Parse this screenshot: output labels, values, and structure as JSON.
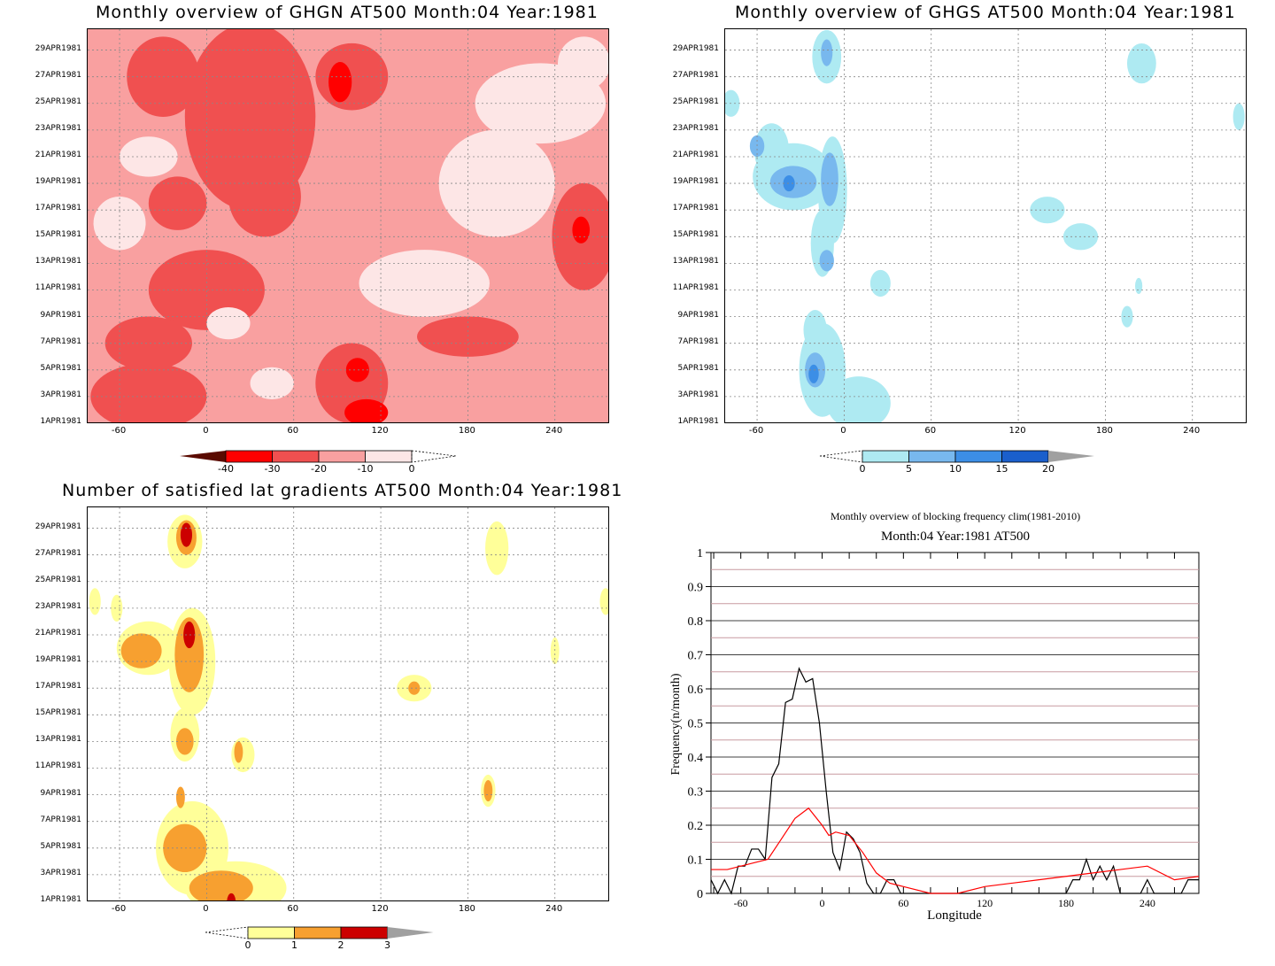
{
  "chart_data": [
    {
      "type": "heatmap",
      "title": "Monthly overview of GHGN AT500 Month:04 Year:1981",
      "x_ticks": [
        "-60",
        "0",
        "60",
        "120",
        "180",
        "240"
      ],
      "x_range": [
        -82,
        278
      ],
      "y_ticks": [
        "1APR1981",
        "3APR1981",
        "5APR1981",
        "7APR1981",
        "9APR1981",
        "11APR1981",
        "13APR1981",
        "15APR1981",
        "17APR1981",
        "19APR1981",
        "21APR1981",
        "23APR1981",
        "25APR1981",
        "27APR1981",
        "29APR1981"
      ],
      "colorbar": {
        "labels": [
          "-40",
          "-30",
          "-20",
          "-10",
          "0"
        ],
        "colors": [
          "#5a0a00",
          "#ff0000",
          "#f05050",
          "#f9a0a0",
          "#fde6e6"
        ],
        "underflow": "#5a0a00",
        "overflow": "none"
      },
      "background_color": "#f9a0a0",
      "blobs": [
        {
          "x": 30,
          "y": 24,
          "rx": 45,
          "ry": 7,
          "c": "#f05050"
        },
        {
          "x": -30,
          "y": 27,
          "rx": 25,
          "ry": 3,
          "c": "#f05050"
        },
        {
          "x": 100,
          "y": 27,
          "rx": 25,
          "ry": 2.5,
          "c": "#f05050"
        },
        {
          "x": 92,
          "y": 26.6,
          "rx": 8,
          "ry": 1.5,
          "c": "#ff0000"
        },
        {
          "x": 40,
          "y": 18,
          "rx": 25,
          "ry": 3,
          "c": "#f05050"
        },
        {
          "x": -20,
          "y": 17.5,
          "rx": 20,
          "ry": 2,
          "c": "#f05050"
        },
        {
          "x": 260,
          "y": 15,
          "rx": 22,
          "ry": 4,
          "c": "#f05050"
        },
        {
          "x": 258,
          "y": 15.5,
          "rx": 6,
          "ry": 1,
          "c": "#ff0000"
        },
        {
          "x": 0,
          "y": 11,
          "rx": 40,
          "ry": 3,
          "c": "#f05050"
        },
        {
          "x": -40,
          "y": 7,
          "rx": 30,
          "ry": 2,
          "c": "#f05050"
        },
        {
          "x": -40,
          "y": 3,
          "rx": 40,
          "ry": 2.5,
          "c": "#f05050"
        },
        {
          "x": 100,
          "y": 4,
          "rx": 25,
          "ry": 3,
          "c": "#f05050"
        },
        {
          "x": 104,
          "y": 5,
          "rx": 8,
          "ry": 0.9,
          "c": "#ff0000"
        },
        {
          "x": 110,
          "y": 1.8,
          "rx": 15,
          "ry": 1,
          "c": "#ff0000"
        },
        {
          "x": 180,
          "y": 7.5,
          "rx": 35,
          "ry": 1.5,
          "c": "#f05050"
        },
        {
          "x": 200,
          "y": 19,
          "rx": 40,
          "ry": 4,
          "c": "#fde6e6"
        },
        {
          "x": 150,
          "y": 11.5,
          "rx": 45,
          "ry": 2.5,
          "c": "#fde6e6"
        },
        {
          "x": 230,
          "y": 25,
          "rx": 45,
          "ry": 3,
          "c": "#fde6e6"
        },
        {
          "x": -60,
          "y": 16,
          "rx": 18,
          "ry": 2,
          "c": "#fde6e6"
        },
        {
          "x": 15,
          "y": 8.5,
          "rx": 15,
          "ry": 1.2,
          "c": "#fde6e6"
        },
        {
          "x": 45,
          "y": 4,
          "rx": 15,
          "ry": 1.2,
          "c": "#fde6e6"
        },
        {
          "x": -40,
          "y": 21,
          "rx": 20,
          "ry": 1.5,
          "c": "#fde6e6"
        },
        {
          "x": 260,
          "y": 28,
          "rx": 18,
          "ry": 2,
          "c": "#fde6e6"
        }
      ]
    },
    {
      "type": "heatmap",
      "title": "Monthly overview of GHGS AT500 Month:04 Year:1981",
      "x_ticks": [
        "-60",
        "0",
        "60",
        "120",
        "180",
        "240"
      ],
      "x_range": [
        -82,
        278
      ],
      "y_ticks": [
        "1APR1981",
        "3APR1981",
        "5APR1981",
        "7APR1981",
        "9APR1981",
        "11APR1981",
        "13APR1981",
        "15APR1981",
        "17APR1981",
        "19APR1981",
        "21APR1981",
        "23APR1981",
        "25APR1981",
        "27APR1981",
        "29APR1981"
      ],
      "colorbar": {
        "labels": [
          "0",
          "5",
          "10",
          "15",
          "20"
        ],
        "colors": [
          "#aeeaf2",
          "#78b8ee",
          "#3c8ee6",
          "#1a5fcc",
          "#a0a0a0"
        ],
        "underflow": "none",
        "overflow": "#a0a0a0"
      },
      "background_color": "#ffffff",
      "blobs": [
        {
          "x": -12,
          "y": 28.5,
          "rx": 10,
          "ry": 2,
          "c": "#aeeaf2"
        },
        {
          "x": -12,
          "y": 28.8,
          "rx": 4,
          "ry": 1,
          "c": "#78b8ee"
        },
        {
          "x": -78,
          "y": 25,
          "rx": 6,
          "ry": 1,
          "c": "#aeeaf2"
        },
        {
          "x": -50,
          "y": 21.5,
          "rx": 12,
          "ry": 2,
          "c": "#aeeaf2"
        },
        {
          "x": -35,
          "y": 19.5,
          "rx": 28,
          "ry": 2.5,
          "c": "#aeeaf2"
        },
        {
          "x": -8,
          "y": 18.5,
          "rx": 10,
          "ry": 4,
          "c": "#aeeaf2"
        },
        {
          "x": -15,
          "y": 14.5,
          "rx": 8,
          "ry": 2.5,
          "c": "#aeeaf2"
        },
        {
          "x": -35,
          "y": 19.1,
          "rx": 16,
          "ry": 1.2,
          "c": "#78b8ee"
        },
        {
          "x": -10,
          "y": 19.3,
          "rx": 6,
          "ry": 2,
          "c": "#78b8ee"
        },
        {
          "x": -60,
          "y": 21.8,
          "rx": 5,
          "ry": 0.8,
          "c": "#78b8ee"
        },
        {
          "x": -38,
          "y": 19,
          "rx": 4,
          "ry": 0.6,
          "c": "#3c8ee6"
        },
        {
          "x": -12,
          "y": 13.2,
          "rx": 5,
          "ry": 0.8,
          "c": "#78b8ee"
        },
        {
          "x": 25,
          "y": 11.5,
          "rx": 7,
          "ry": 1,
          "c": "#aeeaf2"
        },
        {
          "x": -15,
          "y": 5,
          "rx": 16,
          "ry": 3.5,
          "c": "#aeeaf2"
        },
        {
          "x": 10,
          "y": 2.5,
          "rx": 22,
          "ry": 2,
          "c": "#aeeaf2"
        },
        {
          "x": -20,
          "y": 8,
          "rx": 8,
          "ry": 1.5,
          "c": "#aeeaf2"
        },
        {
          "x": -20,
          "y": 5,
          "rx": 7,
          "ry": 1.3,
          "c": "#78b8ee"
        },
        {
          "x": -21,
          "y": 4.7,
          "rx": 3.5,
          "ry": 0.7,
          "c": "#3c8ee6"
        },
        {
          "x": 140,
          "y": 17,
          "rx": 12,
          "ry": 1,
          "c": "#aeeaf2"
        },
        {
          "x": 163,
          "y": 15,
          "rx": 12,
          "ry": 1,
          "c": "#aeeaf2"
        },
        {
          "x": 205,
          "y": 28,
          "rx": 10,
          "ry": 1.5,
          "c": "#aeeaf2"
        },
        {
          "x": 272,
          "y": 24,
          "rx": 4,
          "ry": 1,
          "c": "#aeeaf2"
        },
        {
          "x": 195,
          "y": 9,
          "rx": 4,
          "ry": 0.8,
          "c": "#aeeaf2"
        },
        {
          "x": 203,
          "y": 11.3,
          "rx": 2.5,
          "ry": 0.6,
          "c": "#aeeaf2"
        }
      ]
    },
    {
      "type": "heatmap",
      "title": "Number of satisfied lat gradients AT500 Month:04 Year:1981",
      "x_ticks": [
        "-60",
        "0",
        "60",
        "120",
        "180",
        "240"
      ],
      "x_range": [
        -82,
        278
      ],
      "y_ticks": [
        "1APR1981",
        "3APR1981",
        "5APR1981",
        "7APR1981",
        "9APR1981",
        "11APR1981",
        "13APR1981",
        "15APR1981",
        "17APR1981",
        "19APR1981",
        "21APR1981",
        "23APR1981",
        "25APR1981",
        "27APR1981",
        "29APR1981"
      ],
      "colorbar": {
        "labels": [
          "0",
          "1",
          "2",
          "3"
        ],
        "colors": [
          "#ffff99",
          "#f7a030",
          "#cc0000",
          "#a0a0a0"
        ],
        "underflow": "none",
        "overflow": "#a0a0a0"
      },
      "background_color": "#ffffff",
      "blobs": [
        {
          "x": -15,
          "y": 28,
          "rx": 12,
          "ry": 2,
          "c": "#ffff99"
        },
        {
          "x": -14,
          "y": 28.3,
          "rx": 7,
          "ry": 1.3,
          "c": "#f7a030"
        },
        {
          "x": -14,
          "y": 28.5,
          "rx": 4,
          "ry": 0.9,
          "c": "#cc0000"
        },
        {
          "x": -40,
          "y": 20,
          "rx": 22,
          "ry": 2,
          "c": "#ffff99"
        },
        {
          "x": -10,
          "y": 19,
          "rx": 16,
          "ry": 4,
          "c": "#ffff99"
        },
        {
          "x": -45,
          "y": 19.8,
          "rx": 14,
          "ry": 1.3,
          "c": "#f7a030"
        },
        {
          "x": -12,
          "y": 19.5,
          "rx": 10,
          "ry": 2.8,
          "c": "#f7a030"
        },
        {
          "x": -12,
          "y": 21,
          "rx": 4,
          "ry": 1,
          "c": "#cc0000"
        },
        {
          "x": -15,
          "y": 13.5,
          "rx": 10,
          "ry": 2,
          "c": "#ffff99"
        },
        {
          "x": -15,
          "y": 13,
          "rx": 6,
          "ry": 1,
          "c": "#f7a030"
        },
        {
          "x": -77,
          "y": 23.5,
          "rx": 4,
          "ry": 1,
          "c": "#ffff99"
        },
        {
          "x": -62,
          "y": 23,
          "rx": 4,
          "ry": 1,
          "c": "#ffff99"
        },
        {
          "x": 275,
          "y": 23.5,
          "rx": 4,
          "ry": 1,
          "c": "#ffff99"
        },
        {
          "x": 200,
          "y": 27.5,
          "rx": 8,
          "ry": 2,
          "c": "#ffff99"
        },
        {
          "x": 143,
          "y": 17,
          "rx": 12,
          "ry": 1,
          "c": "#ffff99"
        },
        {
          "x": 143,
          "y": 17,
          "rx": 4,
          "ry": 0.5,
          "c": "#f7a030"
        },
        {
          "x": 25,
          "y": 12,
          "rx": 8,
          "ry": 1.3,
          "c": "#ffff99"
        },
        {
          "x": 22,
          "y": 12.2,
          "rx": 3,
          "ry": 0.8,
          "c": "#f7a030"
        },
        {
          "x": 194,
          "y": 9.3,
          "rx": 5,
          "ry": 1.2,
          "c": "#ffff99"
        },
        {
          "x": 194,
          "y": 9.3,
          "rx": 3,
          "ry": 0.8,
          "c": "#f7a030"
        },
        {
          "x": 240,
          "y": 19.8,
          "rx": 3,
          "ry": 1,
          "c": "#ffff99"
        },
        {
          "x": -10,
          "y": 5,
          "rx": 25,
          "ry": 3.5,
          "c": "#ffff99"
        },
        {
          "x": 20,
          "y": 2,
          "rx": 35,
          "ry": 2,
          "c": "#ffff99"
        },
        {
          "x": -15,
          "y": 5,
          "rx": 15,
          "ry": 1.8,
          "c": "#f7a030"
        },
        {
          "x": 10,
          "y": 2,
          "rx": 22,
          "ry": 1.3,
          "c": "#f7a030"
        },
        {
          "x": -18,
          "y": 8.8,
          "rx": 3,
          "ry": 0.8,
          "c": "#f7a030"
        },
        {
          "x": 17,
          "y": 1,
          "rx": 3,
          "ry": 0.6,
          "c": "#cc0000"
        }
      ]
    },
    {
      "type": "line",
      "title": "Monthly overview of blocking frequency clim(1981-2010)",
      "subtitle": "Month:04 Year:1981  AT500",
      "xlabel": "Longitude",
      "ylabel": "Frequency(n/month)",
      "xlim": [
        -82,
        278
      ],
      "ylim": [
        0,
        1
      ],
      "x_ticks": [
        "-60",
        "0",
        "60",
        "120",
        "180",
        "240"
      ],
      "y_ticks": [
        "0",
        "0.1",
        "0.2",
        "0.3",
        "0.4",
        "0.5",
        "0.6",
        "0.7",
        "0.8",
        "0.9",
        "1"
      ],
      "series": [
        {
          "color": "#000000",
          "x": [
            -82,
            -77,
            -72,
            -67,
            -62,
            -57,
            -52,
            -47,
            -42,
            -37,
            -32,
            -27,
            -22,
            -17,
            -12,
            -7,
            -2,
            3,
            8,
            13,
            18,
            23,
            28,
            33,
            38,
            43,
            48,
            53,
            58,
            63,
            180,
            185,
            190,
            195,
            200,
            205,
            210,
            215,
            220,
            235,
            240,
            245,
            250,
            255,
            260,
            265,
            270,
            275,
            278
          ],
          "y": [
            0.04,
            0.0,
            0.04,
            0.0,
            0.08,
            0.08,
            0.13,
            0.13,
            0.1,
            0.34,
            0.38,
            0.56,
            0.57,
            0.66,
            0.62,
            0.63,
            0.5,
            0.3,
            0.12,
            0.07,
            0.18,
            0.16,
            0.12,
            0.03,
            0.0,
            0.0,
            0.04,
            0.04,
            0.0,
            0.0,
            0.0,
            0.04,
            0.04,
            0.1,
            0.04,
            0.08,
            0.04,
            0.08,
            0.0,
            0.0,
            0.04,
            0.0,
            0.0,
            0.0,
            0.0,
            0.0,
            0.04,
            0.04,
            0.04
          ]
        },
        {
          "color": "#ff0000",
          "x": [
            -82,
            -70,
            -60,
            -50,
            -40,
            -30,
            -20,
            -10,
            0,
            5,
            10,
            20,
            30,
            40,
            50,
            60,
            80,
            100,
            120,
            140,
            160,
            180,
            200,
            220,
            240,
            260,
            278
          ],
          "y": [
            0.07,
            0.07,
            0.08,
            0.09,
            0.1,
            0.16,
            0.22,
            0.25,
            0.2,
            0.17,
            0.18,
            0.17,
            0.12,
            0.06,
            0.03,
            0.02,
            0.0,
            0.0,
            0.02,
            0.03,
            0.04,
            0.05,
            0.06,
            0.07,
            0.08,
            0.04,
            0.05
          ]
        }
      ],
      "hlines": {
        "black": [
          0.1,
          0.2,
          0.3,
          0.4,
          0.5,
          0.6,
          0.7,
          0.8,
          0.9
        ],
        "pink": [
          0.05,
          0.15,
          0.25,
          0.35,
          0.45,
          0.55,
          0.65,
          0.75,
          0.85,
          0.95
        ]
      }
    }
  ]
}
